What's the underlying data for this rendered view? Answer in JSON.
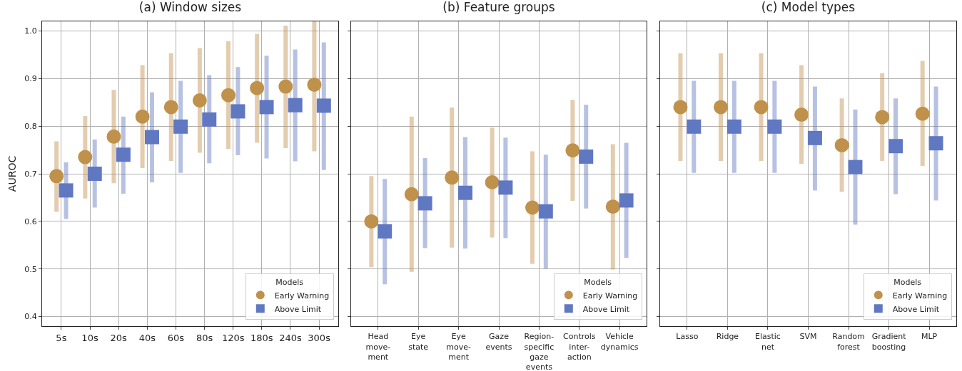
{
  "chart_data": [
    {
      "type": "scatter",
      "title": "(a) Window sizes",
      "ylabel": "AUROC",
      "legend_title": "Models",
      "legend": "bottom right",
      "grid": true,
      "categories": [
        "5s",
        "10s",
        "20s",
        "40s",
        "60s",
        "80s",
        "120s",
        "180s",
        "240s",
        "300s"
      ],
      "ylim": [
        0.38,
        1.02
      ],
      "yticks": [
        {
          "value": 0.4,
          "label": "0.4"
        },
        {
          "value": 0.5,
          "label": "0.5"
        },
        {
          "value": 0.6,
          "label": "0.6"
        },
        {
          "value": 0.7,
          "label": "0.7"
        },
        {
          "value": 0.8,
          "label": "0.8"
        },
        {
          "value": 0.9,
          "label": "0.9"
        },
        {
          "value": 1.0,
          "label": "1.0"
        }
      ],
      "series": [
        {
          "name": "Early Warning",
          "color": "#c0914b",
          "marker": "circle",
          "values": [
            0.695,
            0.735,
            0.778,
            0.82,
            0.84,
            0.854,
            0.865,
            0.88,
            0.883,
            0.887
          ],
          "errors": [
            [
              0.62,
              0.768
            ],
            [
              0.648,
              0.821
            ],
            [
              0.68,
              0.876
            ],
            [
              0.712,
              0.928
            ],
            [
              0.727,
              0.953
            ],
            [
              0.744,
              0.964
            ],
            [
              0.752,
              0.978
            ],
            [
              0.765,
              0.994
            ],
            [
              0.754,
              1.011
            ],
            [
              0.747,
              1.02
            ]
          ]
        },
        {
          "name": "Above Limit",
          "color": "#6078c2",
          "marker": "square",
          "values": [
            0.665,
            0.7,
            0.74,
            0.777,
            0.799,
            0.814,
            0.831,
            0.84,
            0.844,
            0.843
          ],
          "errors": [
            [
              0.605,
              0.724
            ],
            [
              0.629,
              0.772
            ],
            [
              0.658,
              0.82
            ],
            [
              0.682,
              0.871
            ],
            [
              0.702,
              0.895
            ],
            [
              0.722,
              0.907
            ],
            [
              0.739,
              0.924
            ],
            [
              0.732,
              0.948
            ],
            [
              0.726,
              0.961
            ],
            [
              0.708,
              0.976
            ]
          ]
        }
      ]
    },
    {
      "type": "scatter",
      "title": "(b) Feature groups",
      "legend_title": "Models",
      "legend": "bottom right",
      "grid": true,
      "tick_labels": "x",
      "categories": [
        "Head\nmove-\nment",
        "Eye\nstate",
        "Eye\nmove-\nment",
        "Gaze\nevents",
        "Region-\nspecific\ngaze\nevents",
        "Controls\ninter-\naction",
        "Vehicle\ndynamics"
      ],
      "ylim": [
        0.38,
        1.02
      ],
      "yticks": [
        {
          "value": 0.4,
          "label": null
        },
        {
          "value": 0.5,
          "label": null
        },
        {
          "value": 0.6,
          "label": null
        },
        {
          "value": 0.7,
          "label": null
        },
        {
          "value": 0.8,
          "label": null
        },
        {
          "value": 0.9,
          "label": null
        },
        {
          "value": 1.0,
          "label": null
        }
      ],
      "series": [
        {
          "name": "Early Warning",
          "color": "#c0914b",
          "marker": "circle",
          "values": [
            0.6,
            0.657,
            0.692,
            0.682,
            0.629,
            0.749,
            0.631
          ],
          "errors": [
            [
              0.504,
              0.695
            ],
            [
              0.494,
              0.82
            ],
            [
              0.545,
              0.839
            ],
            [
              0.566,
              0.797
            ],
            [
              0.511,
              0.747
            ],
            [
              0.643,
              0.855
            ],
            [
              0.499,
              0.762
            ]
          ]
        },
        {
          "name": "Above Limit",
          "color": "#6078c2",
          "marker": "square",
          "values": [
            0.579,
            0.638,
            0.66,
            0.671,
            0.621,
            0.736,
            0.644
          ],
          "errors": [
            [
              0.468,
              0.689
            ],
            [
              0.544,
              0.733
            ],
            [
              0.543,
              0.777
            ],
            [
              0.565,
              0.776
            ],
            [
              0.501,
              0.74
            ],
            [
              0.627,
              0.845
            ],
            [
              0.523,
              0.765
            ]
          ]
        }
      ]
    },
    {
      "type": "scatter",
      "title": "(c) Model types",
      "legend_title": "Models",
      "legend": "bottom right",
      "grid": true,
      "tick_labels": "x",
      "categories": [
        "Lasso",
        "Ridge",
        "Elastic\nnet",
        "SVM",
        "Random\nforest",
        "Gradient\nboosting",
        "MLP"
      ],
      "ylim": [
        0.38,
        1.02
      ],
      "yticks": [
        {
          "value": 0.4,
          "label": null
        },
        {
          "value": 0.5,
          "label": null
        },
        {
          "value": 0.6,
          "label": null
        },
        {
          "value": 0.7,
          "label": null
        },
        {
          "value": 0.8,
          "label": null
        },
        {
          "value": 0.9,
          "label": null
        },
        {
          "value": 1.0,
          "label": null
        }
      ],
      "series": [
        {
          "name": "Early Warning",
          "color": "#c0914b",
          "marker": "circle",
          "values": [
            0.84,
            0.84,
            0.84,
            0.824,
            0.76,
            0.819,
            0.826
          ],
          "errors": [
            [
              0.727,
              0.953
            ],
            [
              0.727,
              0.953
            ],
            [
              0.727,
              0.953
            ],
            [
              0.721,
              0.928
            ],
            [
              0.662,
              0.858
            ],
            [
              0.727,
              0.911
            ],
            [
              0.716,
              0.937
            ]
          ]
        },
        {
          "name": "Above Limit",
          "color": "#6078c2",
          "marker": "square",
          "values": [
            0.799,
            0.799,
            0.799,
            0.775,
            0.714,
            0.758,
            0.764
          ],
          "errors": [
            [
              0.702,
              0.895
            ],
            [
              0.702,
              0.895
            ],
            [
              0.702,
              0.895
            ],
            [
              0.665,
              0.883
            ],
            [
              0.593,
              0.835
            ],
            [
              0.657,
              0.858
            ],
            [
              0.644,
              0.883
            ]
          ]
        }
      ]
    }
  ]
}
